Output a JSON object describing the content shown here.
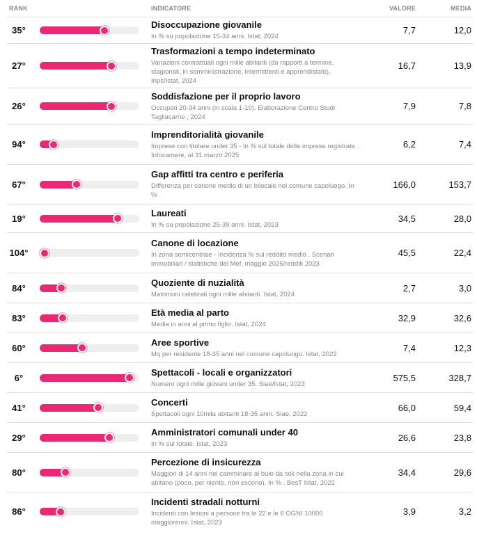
{
  "header": {
    "rank": "RANK",
    "indicator": "INDICATORE",
    "value": "VALORE",
    "mean": "MEDIA"
  },
  "accent_color": "#ec2873",
  "rows": [
    {
      "rank": "35°",
      "progress": 0.65,
      "title": "Disoccupazione giovanile",
      "desc": "In % su popolazione 15-34 anni. Istat, 2024",
      "value": "7,7",
      "mean": "12,0"
    },
    {
      "rank": "27°",
      "progress": 0.72,
      "title": "Trasformazioni a tempo indeterminato",
      "desc": "Variazioni contrattuali ogni mille abitanti (da rapporti a termine, stagionali, in somministrazione, intermittenti e apprendistato). Inps/Istat, 2024",
      "value": "16,7",
      "mean": "13,9"
    },
    {
      "rank": "26°",
      "progress": 0.72,
      "title": "Soddisfazione per il proprio lavoro",
      "desc": "Occupati 20-34 anni (in scala 1-10). Elaborazione Centro Studi Tagliacarne , 2024",
      "value": "7,9",
      "mean": "7,8"
    },
    {
      "rank": "94°",
      "progress": 0.14,
      "title": "Imprenditorialità giovanile",
      "desc": "Imprese con titolare under 35 - In % sul totale delle imprese registrate . Infocamere, al 31 marzo 2025",
      "value": "6,2",
      "mean": "7,4"
    },
    {
      "rank": "67°",
      "progress": 0.37,
      "title": "Gap affitti tra centro e periferia",
      "desc": "Differenza per canone medio di un bilocale nel comune capoluogo. In %",
      "value": "166,0",
      "mean": "153,7"
    },
    {
      "rank": "19°",
      "progress": 0.78,
      "title": "Laureati",
      "desc": "In % su popolazione 25-39 anni. Istat, 2023",
      "value": "34,5",
      "mean": "28,0"
    },
    {
      "rank": "104°",
      "progress": 0.05,
      "title": "Canone di locazione",
      "desc": "In zona semicentrale - Incidenza % sul reddito medio . Scenari immobiliari / statistiche del Mef, maggio 2025/redditi 2023",
      "value": "45,5",
      "mean": "22,4"
    },
    {
      "rank": "84°",
      "progress": 0.22,
      "title": "Quoziente di nuzialità",
      "desc": "Matrimoni celebrati ogni mille abitanti. Istat, 2024",
      "value": "2,7",
      "mean": "3,0"
    },
    {
      "rank": "83°",
      "progress": 0.23,
      "title": "Età media al parto",
      "desc": "Media in anni al primo figlio. Istat, 2024",
      "value": "32,9",
      "mean": "32,6"
    },
    {
      "rank": "60°",
      "progress": 0.43,
      "title": "Aree sportive",
      "desc": "Mq per residente 18-35 anni nel comune capoluogo. Istat, 2022",
      "value": "7,4",
      "mean": "12,3"
    },
    {
      "rank": "6°",
      "progress": 0.9,
      "title": "Spettacoli - locali e organizzatori",
      "desc": "Numero ogni mille giovani under 35. Siae/Istat, 2023",
      "value": "575,5",
      "mean": "328,7"
    },
    {
      "rank": "41°",
      "progress": 0.59,
      "title": "Concerti",
      "desc": "Spettacoli ogni 10mila abitanti 18-35 anni. Siae, 2022",
      "value": "66,0",
      "mean": "59,4"
    },
    {
      "rank": "29°",
      "progress": 0.7,
      "title": "Amministratori comunali under 40",
      "desc": "In % sul totale. Istat, 2023",
      "value": "26,6",
      "mean": "23,8"
    },
    {
      "rank": "80°",
      "progress": 0.26,
      "title": "Percezione di insicurezza",
      "desc": "Maggiori di 14 anni nel camminare al buio da soli nella zona in cui abitano (poco, per niente, non escono). In % . BesT Istat, 2022",
      "value": "34,4",
      "mean": "29,6"
    },
    {
      "rank": "86°",
      "progress": 0.21,
      "title": "Incidenti stradali notturni",
      "desc": "Incidenti con lesioni a persone tra le 22 e le 6 OGNI 10000 maggiorenni. Istat, 2023",
      "value": "3,9",
      "mean": "3,2"
    }
  ]
}
